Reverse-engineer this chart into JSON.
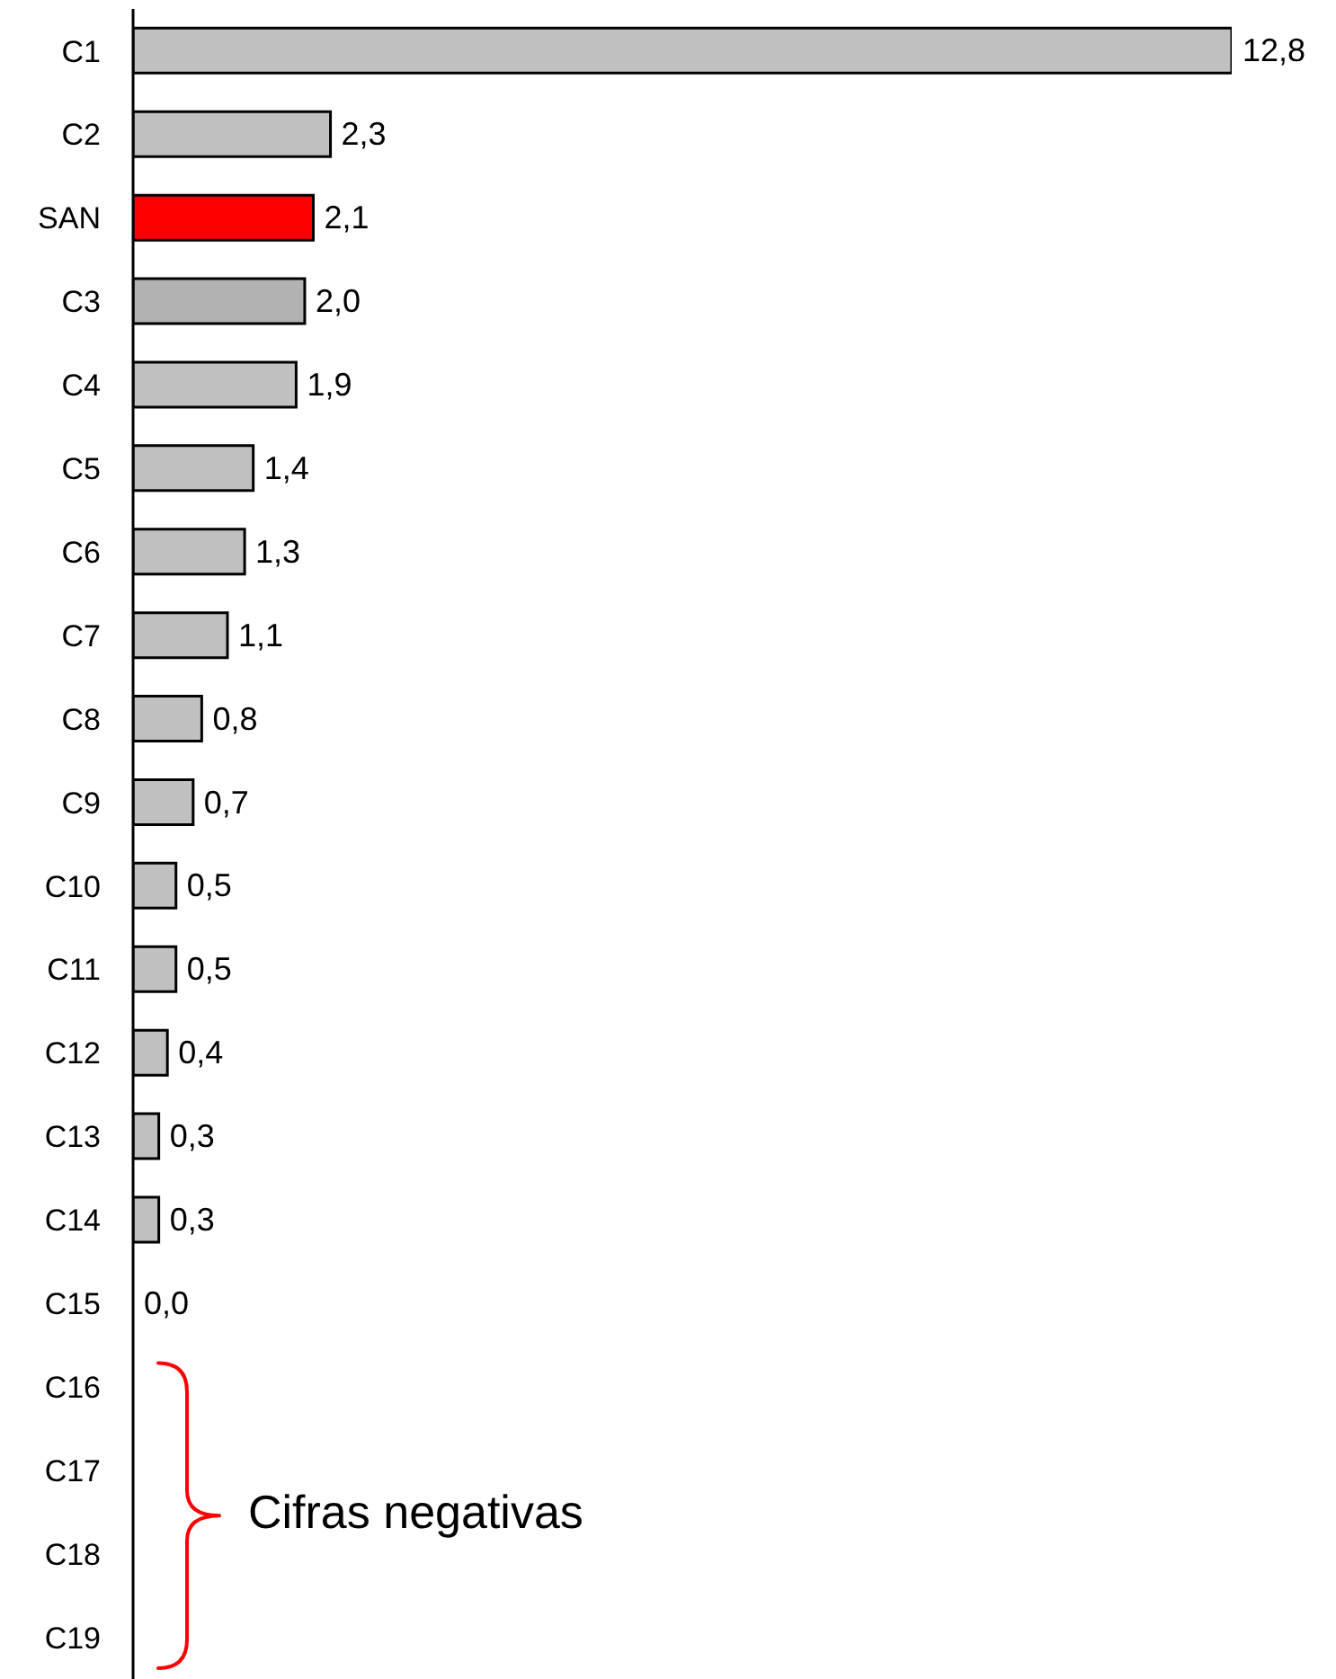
{
  "chart_data": {
    "type": "bar",
    "orientation": "horizontal",
    "categories": [
      "C1",
      "C2",
      "SAN",
      "C3",
      "C4",
      "C5",
      "C6",
      "C7",
      "C8",
      "C9",
      "C10",
      "C11",
      "C12",
      "C13",
      "C14",
      "C15",
      "C16",
      "C17",
      "C18",
      "C19"
    ],
    "values": [
      12.8,
      2.3,
      2.1,
      2.0,
      1.9,
      1.4,
      1.3,
      1.1,
      0.8,
      0.7,
      0.5,
      0.5,
      0.4,
      0.3,
      0.3,
      0.0,
      null,
      null,
      null,
      null
    ],
    "value_labels": [
      "12,8",
      "2,3",
      "2,1",
      "2,0",
      "1,9",
      "1,4",
      "1,3",
      "1,1",
      "0,8",
      "0,7",
      "0,5",
      "0,5",
      "0,4",
      "0,3",
      "0,3",
      "0,0",
      null,
      null,
      null,
      null
    ],
    "colors": [
      "#c0c0c0",
      "#c0c0c0",
      "#ff0000",
      "#b2b2b2",
      "#c0c0c0",
      "#c0c0c0",
      "#c0c0c0",
      "#c0c0c0",
      "#c0c0c0",
      "#c0c0c0",
      "#c0c0c0",
      "#c0c0c0",
      "#c0c0c0",
      "#c0c0c0",
      "#c0c0c0",
      "#c0c0c0",
      "#c0c0c0",
      "#c0c0c0",
      "#c0c0c0",
      "#c0c0c0"
    ],
    "annotations": [
      "Cifras negativas"
    ]
  }
}
